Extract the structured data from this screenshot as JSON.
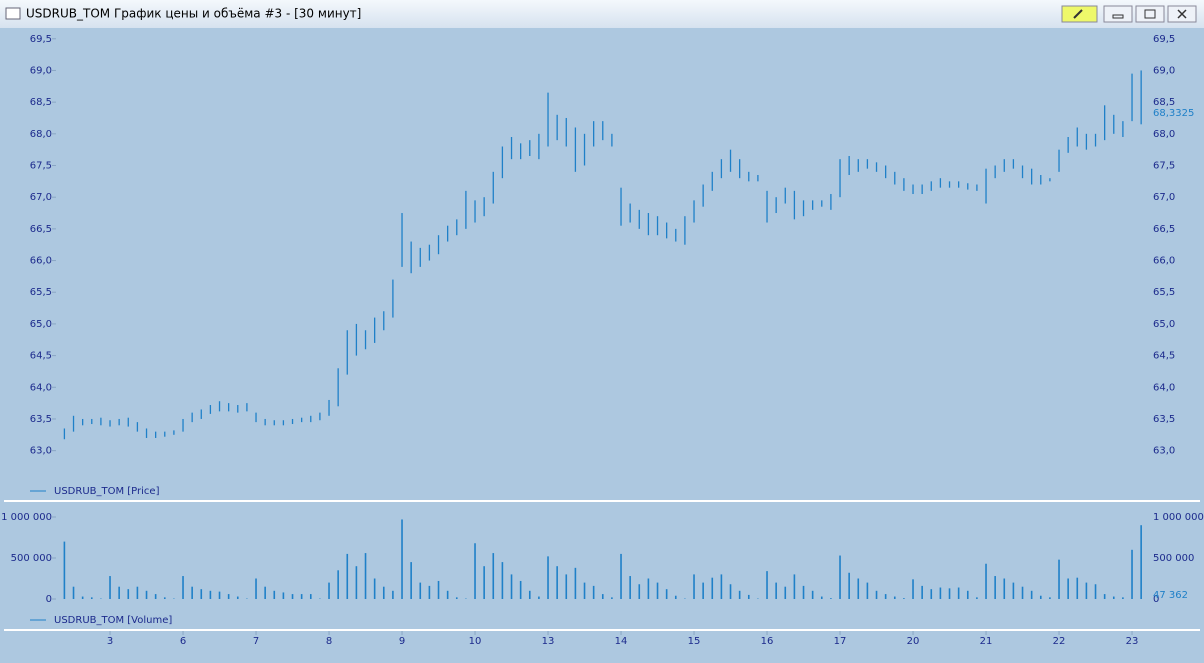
{
  "window": {
    "title": "USDRUB_TOM График цены и объёма #3 - [30 минут]"
  },
  "chart_data": [
    {
      "type": "range-bar",
      "ylim": [
        62.3,
        69.67
      ],
      "yticks": [
        {
          "value": 63.0,
          "label": "63,0"
        },
        {
          "value": 63.5,
          "label": "63,5"
        },
        {
          "value": 64.0,
          "label": "64,0"
        },
        {
          "value": 64.5,
          "label": "64,5"
        },
        {
          "value": 65.0,
          "label": "65,0"
        },
        {
          "value": 65.5,
          "label": "65,5"
        },
        {
          "value": 66.0,
          "label": "66,0"
        },
        {
          "value": 66.5,
          "label": "66,5"
        },
        {
          "value": 67.0,
          "label": "67,0"
        },
        {
          "value": 67.5,
          "label": "67,5"
        },
        {
          "value": 68.0,
          "label": "68,0"
        },
        {
          "value": 68.5,
          "label": "68,5"
        },
        {
          "value": 69.0,
          "label": "69,0"
        },
        {
          "value": 69.5,
          "label": "69,5"
        }
      ],
      "current": {
        "value": 68.3325,
        "label": "68,3325"
      },
      "series": [
        {
          "name": "USDRUB_TOM [Price]",
          "color": "#1f80c8",
          "high": [
            63.35,
            63.55,
            63.5,
            63.5,
            63.52,
            63.48,
            63.5,
            63.52,
            63.45,
            63.35,
            63.3,
            63.3,
            63.32,
            63.5,
            63.6,
            63.65,
            63.72,
            63.78,
            63.75,
            63.72,
            63.75,
            63.6,
            63.5,
            63.48,
            63.48,
            63.5,
            63.52,
            63.55,
            63.6,
            63.8,
            64.3,
            64.9,
            65.0,
            64.9,
            65.1,
            65.2,
            65.7,
            66.75,
            66.3,
            66.2,
            66.25,
            66.4,
            66.55,
            66.65,
            67.1,
            66.95,
            67.0,
            67.4,
            67.8,
            67.95,
            67.85,
            67.9,
            68.0,
            68.65,
            68.3,
            68.25,
            68.1,
            68.0,
            68.2,
            68.2,
            68.0,
            67.15,
            66.9,
            66.8,
            66.75,
            66.7,
            66.6,
            66.5,
            66.7,
            66.95,
            67.2,
            67.4,
            67.6,
            67.75,
            67.6,
            67.4,
            67.35,
            67.1,
            67.0,
            67.15,
            67.1,
            66.95,
            66.95,
            66.95,
            67.05,
            67.6,
            67.65,
            67.6,
            67.6,
            67.55,
            67.5,
            67.4,
            67.3,
            67.2,
            67.2,
            67.25,
            67.3,
            67.25,
            67.25,
            67.22,
            67.2,
            67.45,
            67.5,
            67.6,
            67.6,
            67.5,
            67.45,
            67.35,
            67.3,
            67.75,
            67.95,
            68.1,
            68.0,
            68.0,
            68.45,
            68.3,
            68.2,
            68.95,
            69.0
          ],
          "low": [
            63.18,
            63.3,
            63.4,
            63.42,
            63.4,
            63.38,
            63.4,
            63.38,
            63.3,
            63.2,
            63.2,
            63.22,
            63.25,
            63.3,
            63.45,
            63.5,
            63.58,
            63.62,
            63.62,
            63.6,
            63.62,
            63.45,
            63.4,
            63.4,
            63.4,
            63.42,
            63.45,
            63.45,
            63.48,
            63.55,
            63.7,
            64.2,
            64.5,
            64.6,
            64.7,
            64.9,
            65.1,
            65.9,
            65.8,
            65.9,
            66.0,
            66.1,
            66.3,
            66.4,
            66.5,
            66.6,
            66.7,
            66.9,
            67.3,
            67.6,
            67.6,
            67.65,
            67.6,
            67.8,
            67.9,
            67.8,
            67.4,
            67.5,
            67.8,
            67.9,
            67.8,
            66.55,
            66.6,
            66.5,
            66.4,
            66.4,
            66.35,
            66.3,
            66.25,
            66.6,
            66.85,
            67.1,
            67.3,
            67.4,
            67.3,
            67.25,
            67.25,
            66.6,
            66.75,
            66.9,
            66.65,
            66.7,
            66.8,
            66.85,
            66.8,
            67.0,
            67.35,
            67.4,
            67.45,
            67.4,
            67.3,
            67.2,
            67.1,
            67.05,
            67.05,
            67.1,
            67.15,
            67.15,
            67.15,
            67.12,
            67.1,
            66.9,
            67.3,
            67.4,
            67.45,
            67.3,
            67.2,
            67.2,
            67.25,
            67.4,
            67.7,
            67.8,
            67.75,
            67.8,
            67.9,
            68.0,
            67.95,
            68.2,
            68.15
          ]
        }
      ]
    },
    {
      "type": "bar",
      "ylim": [
        0,
        1000000
      ],
      "yticks": [
        {
          "value": 0,
          "label": "0"
        },
        {
          "value": 500000,
          "label": "500 000"
        },
        {
          "value": 1000000,
          "label": "1 000 000"
        }
      ],
      "current": {
        "value": 47362,
        "label": "47 362"
      },
      "categories": [
        null,
        null,
        null,
        null,
        null,
        "3",
        null,
        null,
        null,
        null,
        null,
        null,
        null,
        "6",
        null,
        null,
        null,
        null,
        null,
        null,
        null,
        "7",
        null,
        null,
        null,
        null,
        null,
        null,
        null,
        "8",
        null,
        null,
        null,
        null,
        null,
        null,
        null,
        "9",
        null,
        null,
        null,
        null,
        null,
        null,
        null,
        "10",
        null,
        null,
        null,
        null,
        null,
        null,
        null,
        "13",
        null,
        null,
        null,
        null,
        null,
        null,
        null,
        "14",
        null,
        null,
        null,
        null,
        null,
        null,
        null,
        "15",
        null,
        null,
        null,
        null,
        null,
        null,
        null,
        "16",
        null,
        null,
        null,
        null,
        null,
        null,
        null,
        "17",
        null,
        null,
        null,
        null,
        null,
        null,
        null,
        "20",
        null,
        null,
        null,
        null,
        null,
        null,
        null,
        "21",
        null,
        null,
        null,
        null,
        null,
        null,
        null,
        "22",
        null,
        null,
        null,
        null,
        null,
        null,
        null,
        "23",
        null
      ],
      "series": [
        {
          "name": "USDRUB_TOM [Volume]",
          "color": "#1f80c8",
          "values": [
            700000,
            150000,
            30000,
            20000,
            5000,
            280000,
            150000,
            120000,
            150000,
            100000,
            60000,
            20000,
            5000,
            280000,
            150000,
            120000,
            100000,
            90000,
            60000,
            30000,
            5000,
            250000,
            150000,
            100000,
            80000,
            60000,
            60000,
            60000,
            5000,
            200000,
            350000,
            550000,
            400000,
            560000,
            250000,
            150000,
            100000,
            970000,
            450000,
            200000,
            160000,
            220000,
            100000,
            20000,
            5000,
            680000,
            400000,
            560000,
            450000,
            300000,
            220000,
            100000,
            30000,
            520000,
            400000,
            300000,
            380000,
            200000,
            160000,
            60000,
            20000,
            550000,
            280000,
            180000,
            250000,
            200000,
            120000,
            40000,
            5000,
            300000,
            200000,
            260000,
            300000,
            180000,
            100000,
            50000,
            5000,
            340000,
            200000,
            150000,
            300000,
            160000,
            100000,
            30000,
            10000,
            530000,
            320000,
            250000,
            200000,
            100000,
            60000,
            30000,
            10000,
            240000,
            160000,
            120000,
            140000,
            130000,
            140000,
            100000,
            20000,
            430000,
            280000,
            250000,
            200000,
            150000,
            100000,
            40000,
            20000,
            480000,
            250000,
            260000,
            200000,
            180000,
            60000,
            30000,
            20000,
            600000,
            900000
          ]
        }
      ]
    }
  ]
}
